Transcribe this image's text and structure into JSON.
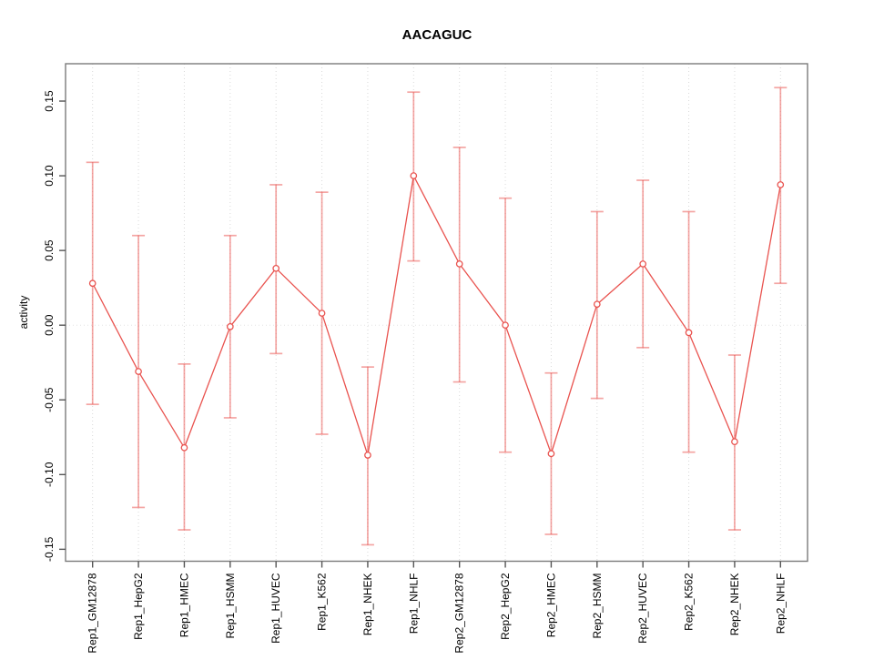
{
  "chart_data": {
    "type": "line",
    "title": "AACAGUC",
    "xlabel": "",
    "ylabel": "activity",
    "legend": "none",
    "marker": "open-circle",
    "error_bars": true,
    "categories": [
      "Rep1_GM12878",
      "Rep1_HepG2",
      "Rep1_HMEC",
      "Rep1_HSMM",
      "Rep1_HUVEC",
      "Rep1_K562",
      "Rep1_NHEK",
      "Rep1_NHLF",
      "Rep2_GM12878",
      "Rep2_HepG2",
      "Rep2_HMEC",
      "Rep2_HSMM",
      "Rep2_HUVEC",
      "Rep2_K562",
      "Rep2_NHEK",
      "Rep2_NHLF"
    ],
    "values": [
      0.028,
      -0.031,
      -0.082,
      -0.001,
      0.038,
      0.008,
      -0.087,
      0.1,
      0.041,
      0.0,
      -0.086,
      0.014,
      0.041,
      -0.005,
      -0.078,
      0.094
    ],
    "ci_low": [
      -0.053,
      -0.122,
      -0.137,
      -0.062,
      -0.019,
      -0.073,
      -0.147,
      0.043,
      -0.038,
      -0.085,
      -0.14,
      -0.049,
      -0.015,
      -0.085,
      -0.137,
      0.028
    ],
    "ci_high": [
      0.109,
      0.06,
      -0.026,
      0.06,
      0.094,
      0.089,
      -0.028,
      0.156,
      0.119,
      0.085,
      -0.032,
      0.076,
      0.097,
      0.076,
      -0.02,
      0.159
    ],
    "ylim": [
      -0.158,
      0.175
    ],
    "yticks": [
      -0.15,
      -0.1,
      -0.05,
      0.0,
      0.05,
      0.1,
      0.15
    ],
    "ytick_labels": [
      "-0.15",
      "-0.10",
      "-0.05",
      "0.00",
      "0.05",
      "0.10",
      "0.15"
    ],
    "grid": {
      "vertical_dotted_per_category": true,
      "horizontal_zero_line_dotted": true
    },
    "colors": {
      "series": "#e9534f",
      "error_bar": "rgba(233,83,79,0.52)",
      "grid": "#d9d9d9",
      "zero_line": "#e3e3e3",
      "axis_box": "#7a7a7a",
      "tick": "#555555",
      "text": "#000000"
    }
  }
}
